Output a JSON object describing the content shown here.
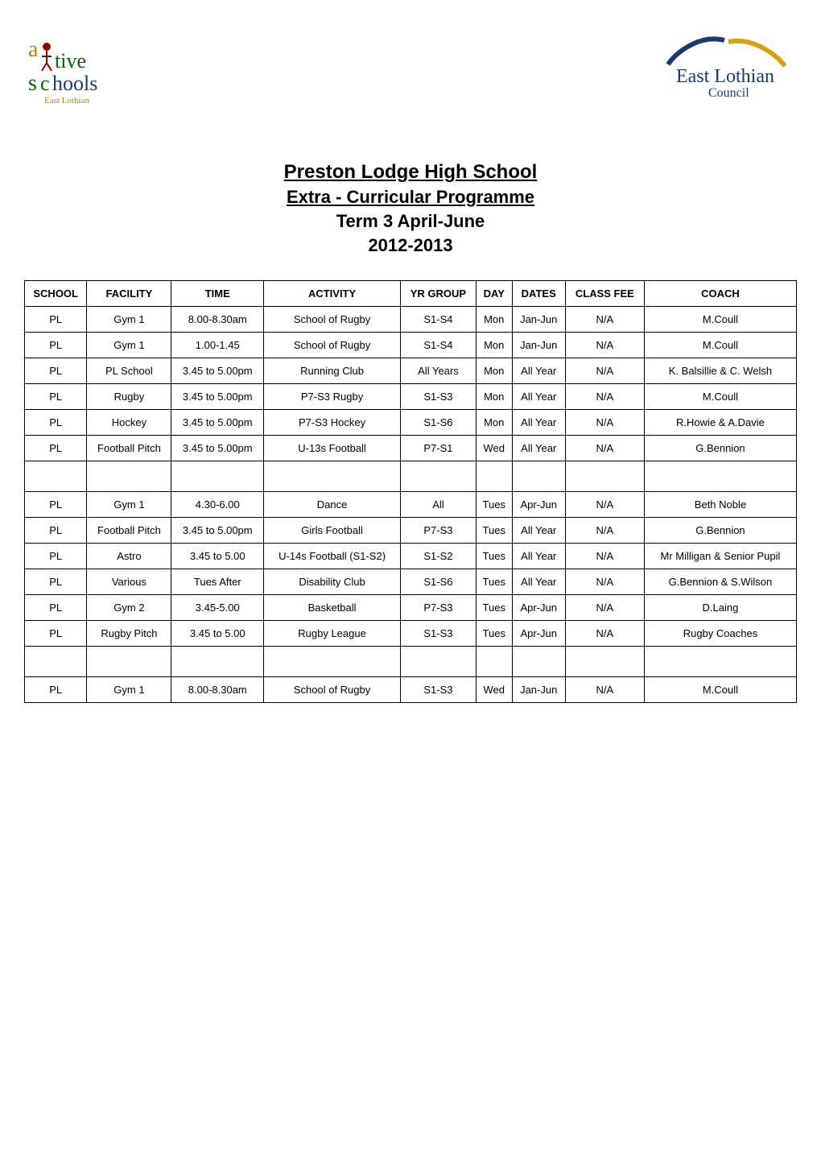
{
  "logos": {
    "left": {
      "line1": "a",
      "line2": "tive",
      "line3": "s",
      "line4": "hools",
      "subtext": "East Lothian"
    },
    "right": {
      "main": "East Lothian",
      "sub": "Council"
    }
  },
  "title": {
    "main": "Preston Lodge High School",
    "sub": "Extra - Curricular Programme",
    "term": "Term 3 April-June",
    "year": "2012-2013"
  },
  "table": {
    "columns": [
      "SCHOOL",
      "FACILITY",
      "TIME",
      "ACTIVITY",
      "YR GROUP",
      "DAY",
      "DATES",
      "CLASS FEE",
      "COACH"
    ],
    "column_widths": [
      "10%",
      "12%",
      "8%",
      "12%",
      "10%",
      "8%",
      "10%",
      "9%",
      "13%"
    ],
    "rows": [
      {
        "school": "PL",
        "facility": "Gym 1",
        "time": "8.00-8.30am",
        "activity": "School of Rugby",
        "yr": "S1-S4",
        "day": "Mon",
        "dates": "Jan-Jun",
        "fee": "N/A",
        "coach": "M.Coull"
      },
      {
        "school": "PL",
        "facility": "Gym 1",
        "time": "1.00-1.45",
        "activity": "School of Rugby",
        "yr": "S1-S4",
        "day": "Mon",
        "dates": "Jan-Jun",
        "fee": "N/A",
        "coach": "M.Coull"
      },
      {
        "school": "PL",
        "facility": "PL School",
        "time": "3.45 to 5.00pm",
        "activity": "Running Club",
        "yr": "All Years",
        "day": "Mon",
        "dates": "All Year",
        "fee": "N/A",
        "coach": "K. Balsillie & C. Welsh"
      },
      {
        "school": "PL",
        "facility": "Rugby",
        "time": "3.45 to 5.00pm",
        "activity": "P7-S3 Rugby",
        "yr": "S1-S3",
        "day": "Mon",
        "dates": "All Year",
        "fee": "N/A",
        "coach": "M.Coull"
      },
      {
        "school": "PL",
        "facility": "Hockey",
        "time": "3.45 to 5.00pm",
        "activity": "P7-S3 Hockey",
        "yr": "S1-S6",
        "day": "Mon",
        "dates": "All Year",
        "fee": "N/A",
        "coach": "R.Howie & A.Davie"
      },
      {
        "school": "PL",
        "facility": "Football Pitch",
        "time": "3.45 to 5.00pm",
        "activity": "U-13s Football",
        "yr": "P7-S1",
        "day": "Wed",
        "dates": "All Year",
        "fee": "N/A",
        "coach": "G.Bennion"
      },
      {
        "empty": true
      },
      {
        "school": "PL",
        "facility": "Gym 1",
        "time": "4.30-6.00",
        "activity": "Dance",
        "yr": "All",
        "day": "Tues",
        "dates": "Apr-Jun",
        "fee": "N/A",
        "coach": "Beth Noble"
      },
      {
        "school": "PL",
        "facility": "Football Pitch",
        "time": "3.45 to 5.00pm",
        "activity": "Girls Football",
        "yr": "P7-S3",
        "day": "Tues",
        "dates": "All Year",
        "fee": "N/A",
        "coach": "G.Bennion"
      },
      {
        "school": "PL",
        "facility": "Astro",
        "time": "3.45 to 5.00",
        "activity": "U-14s Football (S1-S2)",
        "yr": "S1-S2",
        "day": "Tues",
        "dates": "All Year",
        "fee": "N/A",
        "coach": "Mr Milligan & Senior Pupil"
      },
      {
        "school": "PL",
        "facility": "Various",
        "time": "Tues After",
        "activity": "Disability Club",
        "yr": "S1-S6",
        "day": "Tues",
        "dates": "All Year",
        "fee": "N/A",
        "coach": "G.Bennion & S.Wilson"
      },
      {
        "school": "PL",
        "facility": "Gym 2",
        "time": "3.45-5.00",
        "activity": "Basketball",
        "yr": "P7-S3",
        "day": "Tues",
        "dates": "Apr-Jun",
        "fee": "N/A",
        "coach": "D.Laing"
      },
      {
        "school": "PL",
        "facility": "Rugby Pitch",
        "time": "3.45 to 5.00",
        "activity": "Rugby League",
        "yr": "S1-S3",
        "day": "Tues",
        "dates": "Apr-Jun",
        "fee": "N/A",
        "coach": "Rugby Coaches"
      },
      {
        "empty": true
      },
      {
        "school": "PL",
        "facility": "Gym 1",
        "time": "8.00-8.30am",
        "activity": "School of Rugby",
        "yr": "S1-S3",
        "day": "Wed",
        "dates": "Jan-Jun",
        "fee": "N/A",
        "coach": "M.Coull"
      }
    ]
  },
  "colors": {
    "border": "#000000",
    "text": "#000000",
    "logo_blue": "#1a3a6e",
    "logo_orange": "#b8860b",
    "logo_red": "#8b0000",
    "logo_green": "#006400"
  }
}
